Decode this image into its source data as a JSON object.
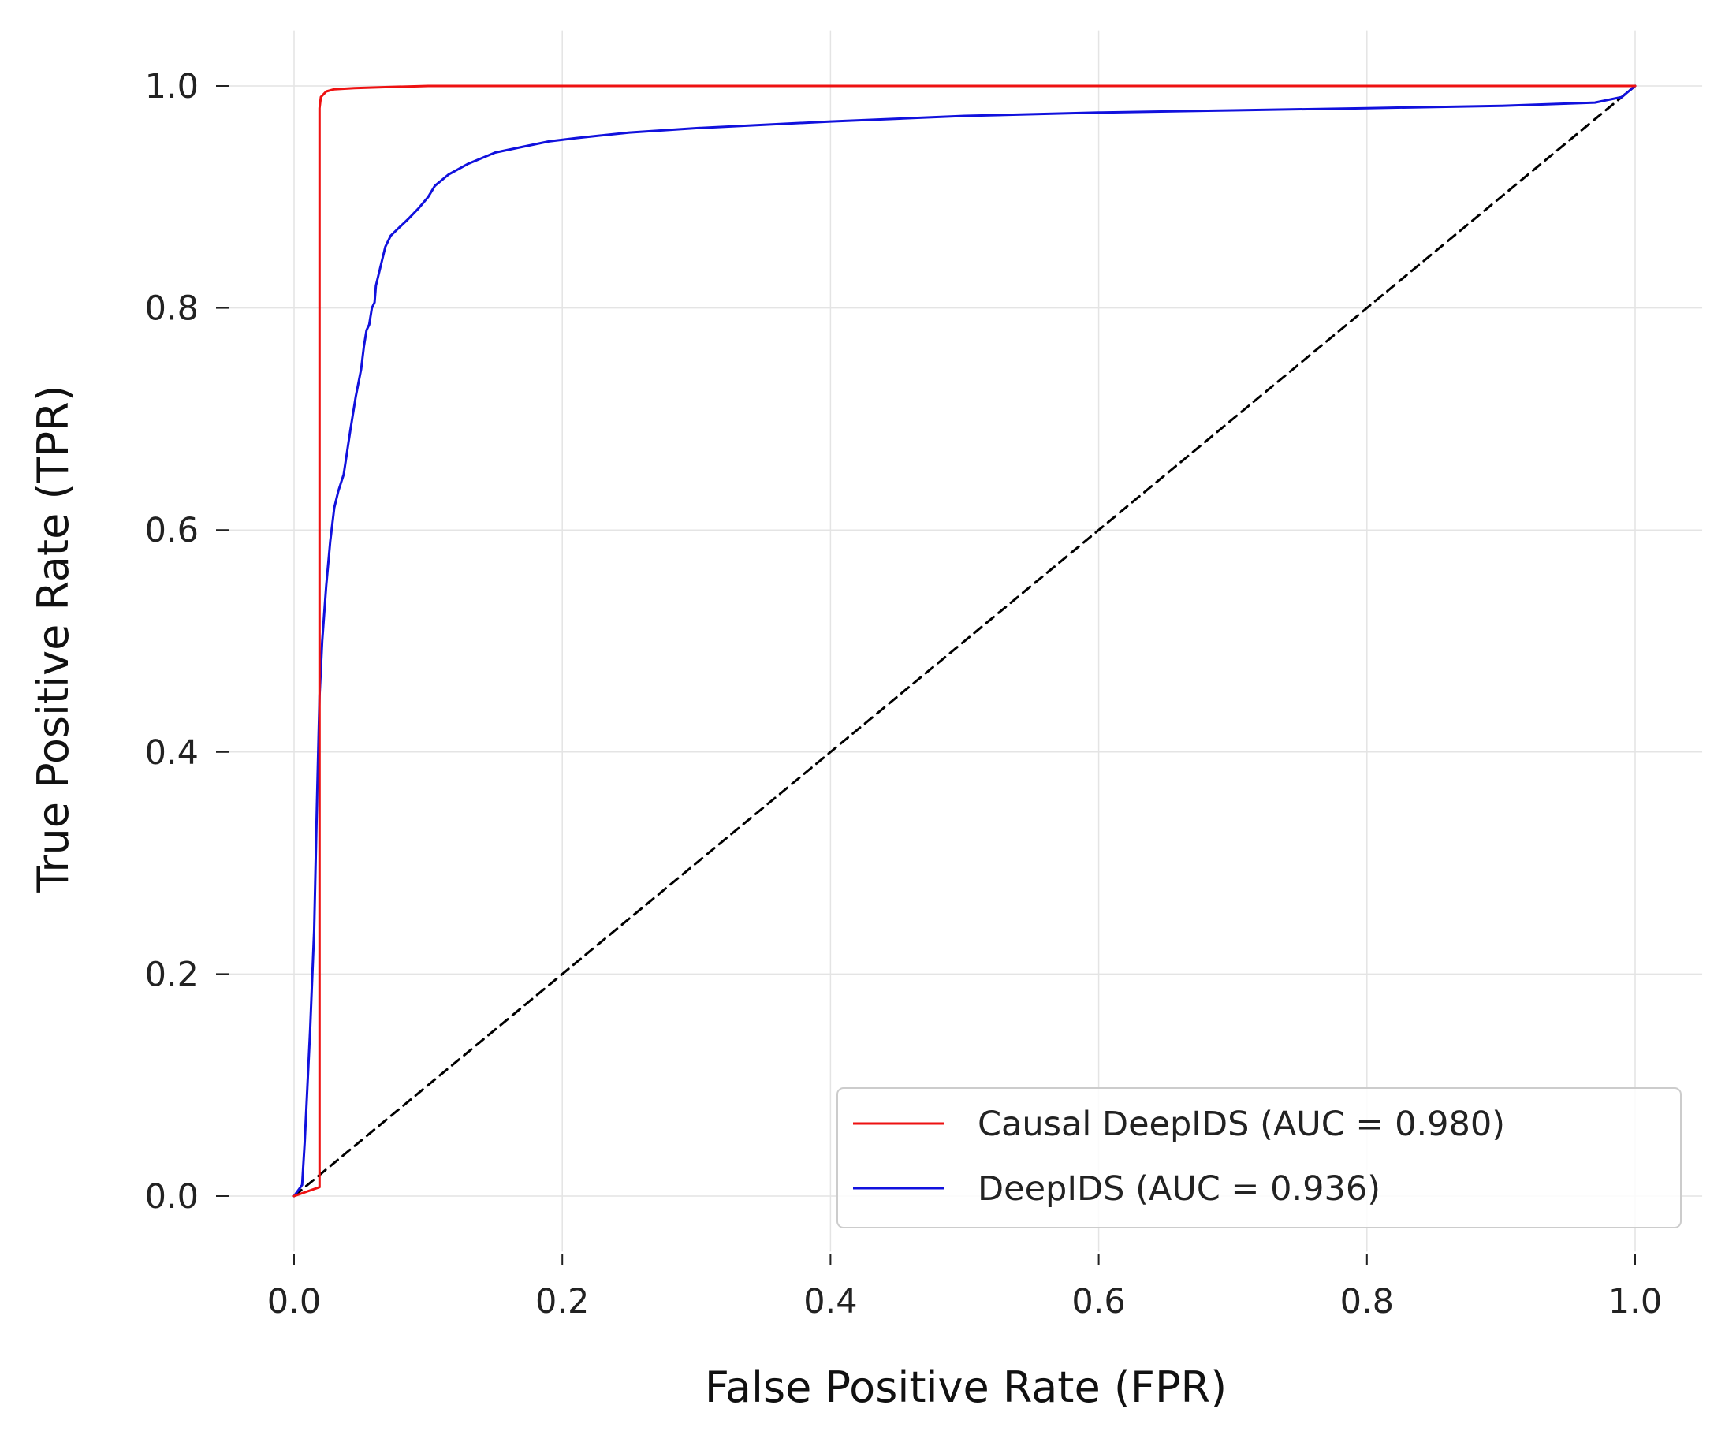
{
  "chart_data": {
    "type": "line",
    "title": "",
    "xlabel": "False Positive Rate (FPR)",
    "ylabel": "True Positive Rate (TPR)",
    "xlim": [
      -0.05,
      1.05
    ],
    "ylim": [
      -0.05,
      1.05
    ],
    "xticks": [
      "0.0",
      "0.2",
      "0.4",
      "0.6",
      "0.8",
      "1.0"
    ],
    "yticks": [
      "0.0",
      "0.2",
      "0.4",
      "0.6",
      "0.8",
      "1.0"
    ],
    "grid": true,
    "legend_position": "lower-right",
    "series": [
      {
        "name": "Causal DeepIDS (AUC = 0.980)",
        "color": "#ee1111",
        "x": [
          0.0,
          0.019,
          0.019,
          0.019,
          0.02,
          0.024,
          0.03,
          0.045,
          0.07,
          0.1,
          0.2,
          0.5,
          1.0
        ],
        "y": [
          0.0,
          0.008,
          0.3,
          0.98,
          0.99,
          0.995,
          0.997,
          0.998,
          0.999,
          1.0,
          1.0,
          1.0,
          1.0
        ]
      },
      {
        "name": "DeepIDS (AUC = 0.936)",
        "color": "#1111dd",
        "x": [
          0.0,
          0.006,
          0.008,
          0.01,
          0.012,
          0.015,
          0.017,
          0.019,
          0.021,
          0.024,
          0.027,
          0.03,
          0.033,
          0.037,
          0.042,
          0.046,
          0.05,
          0.052,
          0.054,
          0.056,
          0.058,
          0.06,
          0.061,
          0.064,
          0.068,
          0.072,
          0.078,
          0.085,
          0.093,
          0.1,
          0.105,
          0.115,
          0.13,
          0.15,
          0.17,
          0.19,
          0.21,
          0.25,
          0.3,
          0.4,
          0.5,
          0.6,
          0.7,
          0.8,
          0.9,
          0.97,
          0.99,
          1.0
        ],
        "y": [
          0.0,
          0.01,
          0.05,
          0.1,
          0.15,
          0.24,
          0.35,
          0.45,
          0.5,
          0.55,
          0.59,
          0.62,
          0.635,
          0.65,
          0.69,
          0.72,
          0.745,
          0.765,
          0.78,
          0.785,
          0.8,
          0.805,
          0.82,
          0.835,
          0.855,
          0.865,
          0.872,
          0.88,
          0.89,
          0.9,
          0.91,
          0.92,
          0.93,
          0.94,
          0.945,
          0.95,
          0.953,
          0.958,
          0.962,
          0.968,
          0.973,
          0.976,
          0.978,
          0.98,
          0.982,
          0.985,
          0.99,
          1.0
        ]
      },
      {
        "name": "",
        "color": "#000000",
        "style": "dashed",
        "x": [
          0.0,
          1.0
        ],
        "y": [
          0.0,
          1.0
        ]
      }
    ]
  }
}
